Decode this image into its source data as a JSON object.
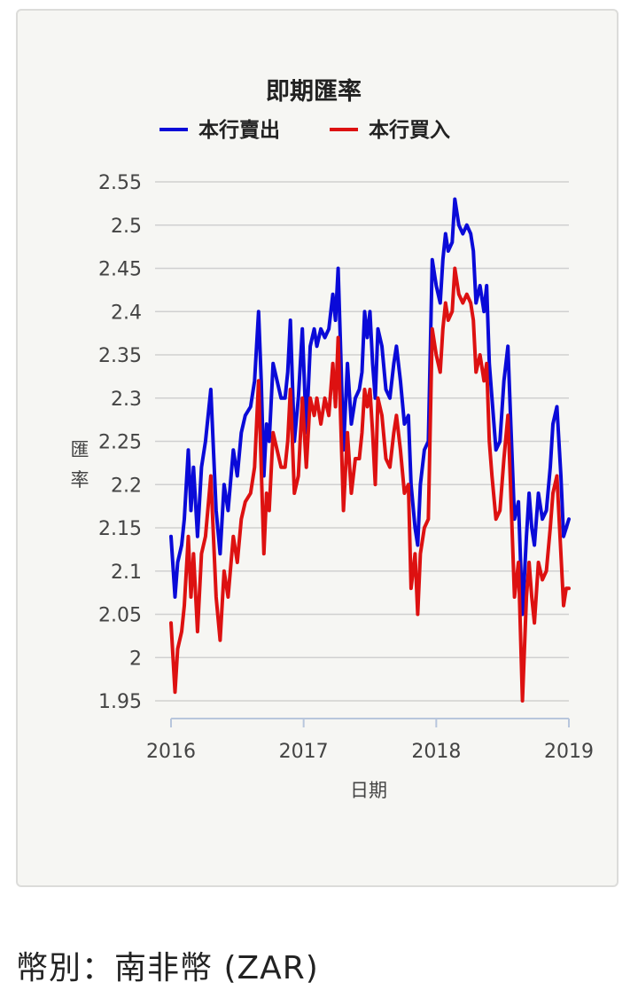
{
  "chart_data": {
    "type": "line",
    "title": "即期匯率",
    "xlabel": "日期",
    "ylabel": "匯率",
    "ylim": [
      1.95,
      2.55
    ],
    "y_ticks": [
      "2.55",
      "2.5",
      "2.45",
      "2.4",
      "2.35",
      "2.3",
      "2.25",
      "2.2",
      "2.15",
      "2.1",
      "2.05",
      "2",
      "1.95"
    ],
    "x_ticks": [
      "2016",
      "2017",
      "2018",
      "2019"
    ],
    "x_range": [
      2016,
      2019
    ],
    "legend": "top",
    "grid": true,
    "series": [
      {
        "name": "本行賣出",
        "color": "#0a0ad8",
        "points": [
          [
            2016.0,
            2.14
          ],
          [
            2016.03,
            2.07
          ],
          [
            2016.05,
            2.11
          ],
          [
            2016.08,
            2.13
          ],
          [
            2016.1,
            2.16
          ],
          [
            2016.13,
            2.24
          ],
          [
            2016.15,
            2.17
          ],
          [
            2016.17,
            2.22
          ],
          [
            2016.2,
            2.14
          ],
          [
            2016.23,
            2.22
          ],
          [
            2016.26,
            2.25
          ],
          [
            2016.3,
            2.31
          ],
          [
            2016.34,
            2.17
          ],
          [
            2016.37,
            2.12
          ],
          [
            2016.4,
            2.2
          ],
          [
            2016.43,
            2.17
          ],
          [
            2016.47,
            2.24
          ],
          [
            2016.5,
            2.21
          ],
          [
            2016.53,
            2.26
          ],
          [
            2016.56,
            2.28
          ],
          [
            2016.6,
            2.29
          ],
          [
            2016.63,
            2.32
          ],
          [
            2016.66,
            2.4
          ],
          [
            2016.68,
            2.32
          ],
          [
            2016.7,
            2.21
          ],
          [
            2016.72,
            2.27
          ],
          [
            2016.74,
            2.25
          ],
          [
            2016.77,
            2.34
          ],
          [
            2016.8,
            2.32
          ],
          [
            2016.83,
            2.3
          ],
          [
            2016.86,
            2.3
          ],
          [
            2016.88,
            2.33
          ],
          [
            2016.9,
            2.39
          ],
          [
            2016.93,
            2.25
          ],
          [
            2016.96,
            2.3
          ],
          [
            2016.99,
            2.38
          ],
          [
            2017.02,
            2.26
          ],
          [
            2017.05,
            2.36
          ],
          [
            2017.08,
            2.38
          ],
          [
            2017.1,
            2.36
          ],
          [
            2017.13,
            2.38
          ],
          [
            2017.16,
            2.37
          ],
          [
            2017.19,
            2.38
          ],
          [
            2017.22,
            2.42
          ],
          [
            2017.24,
            2.39
          ],
          [
            2017.26,
            2.45
          ],
          [
            2017.28,
            2.35
          ],
          [
            2017.3,
            2.24
          ],
          [
            2017.33,
            2.34
          ],
          [
            2017.36,
            2.27
          ],
          [
            2017.39,
            2.3
          ],
          [
            2017.42,
            2.31
          ],
          [
            2017.44,
            2.33
          ],
          [
            2017.46,
            2.4
          ],
          [
            2017.48,
            2.37
          ],
          [
            2017.5,
            2.4
          ],
          [
            2017.52,
            2.34
          ],
          [
            2017.54,
            2.3
          ],
          [
            2017.56,
            2.38
          ],
          [
            2017.59,
            2.36
          ],
          [
            2017.62,
            2.31
          ],
          [
            2017.65,
            2.3
          ],
          [
            2017.68,
            2.34
          ],
          [
            2017.7,
            2.36
          ],
          [
            2017.73,
            2.32
          ],
          [
            2017.76,
            2.27
          ],
          [
            2017.79,
            2.28
          ],
          [
            2017.81,
            2.2
          ],
          [
            2017.84,
            2.15
          ],
          [
            2017.86,
            2.13
          ],
          [
            2017.88,
            2.2
          ],
          [
            2017.91,
            2.24
          ],
          [
            2017.94,
            2.25
          ],
          [
            2017.97,
            2.46
          ],
          [
            2018.0,
            2.43
          ],
          [
            2018.03,
            2.41
          ],
          [
            2018.05,
            2.46
          ],
          [
            2018.07,
            2.49
          ],
          [
            2018.09,
            2.47
          ],
          [
            2018.12,
            2.48
          ],
          [
            2018.14,
            2.53
          ],
          [
            2018.17,
            2.5
          ],
          [
            2018.2,
            2.49
          ],
          [
            2018.23,
            2.5
          ],
          [
            2018.26,
            2.49
          ],
          [
            2018.28,
            2.47
          ],
          [
            2018.3,
            2.41
          ],
          [
            2018.33,
            2.43
          ],
          [
            2018.36,
            2.4
          ],
          [
            2018.38,
            2.43
          ],
          [
            2018.4,
            2.34
          ],
          [
            2018.42,
            2.3
          ],
          [
            2018.45,
            2.24
          ],
          [
            2018.48,
            2.25
          ],
          [
            2018.51,
            2.32
          ],
          [
            2018.54,
            2.36
          ],
          [
            2018.56,
            2.28
          ],
          [
            2018.59,
            2.16
          ],
          [
            2018.62,
            2.18
          ],
          [
            2018.65,
            2.05
          ],
          [
            2018.68,
            2.14
          ],
          [
            2018.7,
            2.19
          ],
          [
            2018.72,
            2.15
          ],
          [
            2018.74,
            2.13
          ],
          [
            2018.77,
            2.19
          ],
          [
            2018.8,
            2.16
          ],
          [
            2018.83,
            2.17
          ],
          [
            2018.86,
            2.22
          ],
          [
            2018.88,
            2.27
          ],
          [
            2018.91,
            2.29
          ],
          [
            2018.94,
            2.21
          ],
          [
            2018.96,
            2.14
          ],
          [
            2018.98,
            2.15
          ],
          [
            2019.0,
            2.16
          ]
        ]
      },
      {
        "name": "本行買入",
        "color": "#dd1111",
        "points": [
          [
            2016.0,
            2.04
          ],
          [
            2016.03,
            1.96
          ],
          [
            2016.05,
            2.01
          ],
          [
            2016.08,
            2.03
          ],
          [
            2016.1,
            2.06
          ],
          [
            2016.13,
            2.14
          ],
          [
            2016.15,
            2.07
          ],
          [
            2016.17,
            2.12
          ],
          [
            2016.2,
            2.03
          ],
          [
            2016.23,
            2.12
          ],
          [
            2016.26,
            2.14
          ],
          [
            2016.3,
            2.21
          ],
          [
            2016.34,
            2.07
          ],
          [
            2016.37,
            2.02
          ],
          [
            2016.4,
            2.1
          ],
          [
            2016.43,
            2.07
          ],
          [
            2016.47,
            2.14
          ],
          [
            2016.5,
            2.11
          ],
          [
            2016.53,
            2.16
          ],
          [
            2016.56,
            2.18
          ],
          [
            2016.6,
            2.19
          ],
          [
            2016.63,
            2.22
          ],
          [
            2016.66,
            2.32
          ],
          [
            2016.68,
            2.22
          ],
          [
            2016.7,
            2.12
          ],
          [
            2016.72,
            2.19
          ],
          [
            2016.74,
            2.17
          ],
          [
            2016.77,
            2.26
          ],
          [
            2016.8,
            2.24
          ],
          [
            2016.83,
            2.22
          ],
          [
            2016.86,
            2.22
          ],
          [
            2016.88,
            2.25
          ],
          [
            2016.9,
            2.31
          ],
          [
            2016.93,
            2.19
          ],
          [
            2016.96,
            2.21
          ],
          [
            2016.99,
            2.3
          ],
          [
            2017.02,
            2.22
          ],
          [
            2017.05,
            2.3
          ],
          [
            2017.08,
            2.28
          ],
          [
            2017.1,
            2.3
          ],
          [
            2017.13,
            2.27
          ],
          [
            2017.16,
            2.3
          ],
          [
            2017.19,
            2.28
          ],
          [
            2017.22,
            2.34
          ],
          [
            2017.24,
            2.29
          ],
          [
            2017.26,
            2.37
          ],
          [
            2017.28,
            2.27
          ],
          [
            2017.3,
            2.17
          ],
          [
            2017.33,
            2.26
          ],
          [
            2017.36,
            2.19
          ],
          [
            2017.39,
            2.23
          ],
          [
            2017.42,
            2.23
          ],
          [
            2017.44,
            2.26
          ],
          [
            2017.46,
            2.31
          ],
          [
            2017.48,
            2.29
          ],
          [
            2017.5,
            2.31
          ],
          [
            2017.52,
            2.26
          ],
          [
            2017.54,
            2.2
          ],
          [
            2017.56,
            2.3
          ],
          [
            2017.59,
            2.28
          ],
          [
            2017.62,
            2.23
          ],
          [
            2017.65,
            2.22
          ],
          [
            2017.68,
            2.26
          ],
          [
            2017.7,
            2.28
          ],
          [
            2017.73,
            2.24
          ],
          [
            2017.76,
            2.19
          ],
          [
            2017.79,
            2.2
          ],
          [
            2017.81,
            2.08
          ],
          [
            2017.84,
            2.12
          ],
          [
            2017.86,
            2.05
          ],
          [
            2017.88,
            2.12
          ],
          [
            2017.91,
            2.15
          ],
          [
            2017.94,
            2.16
          ],
          [
            2017.97,
            2.38
          ],
          [
            2018.0,
            2.35
          ],
          [
            2018.03,
            2.33
          ],
          [
            2018.05,
            2.38
          ],
          [
            2018.07,
            2.41
          ],
          [
            2018.09,
            2.39
          ],
          [
            2018.12,
            2.4
          ],
          [
            2018.14,
            2.45
          ],
          [
            2018.17,
            2.42
          ],
          [
            2018.2,
            2.41
          ],
          [
            2018.23,
            2.42
          ],
          [
            2018.26,
            2.41
          ],
          [
            2018.28,
            2.39
          ],
          [
            2018.3,
            2.33
          ],
          [
            2018.33,
            2.35
          ],
          [
            2018.36,
            2.32
          ],
          [
            2018.38,
            2.34
          ],
          [
            2018.4,
            2.25
          ],
          [
            2018.42,
            2.21
          ],
          [
            2018.45,
            2.16
          ],
          [
            2018.48,
            2.17
          ],
          [
            2018.51,
            2.23
          ],
          [
            2018.54,
            2.28
          ],
          [
            2018.56,
            2.2
          ],
          [
            2018.59,
            2.07
          ],
          [
            2018.62,
            2.11
          ],
          [
            2018.65,
            1.95
          ],
          [
            2018.68,
            2.07
          ],
          [
            2018.7,
            2.11
          ],
          [
            2018.72,
            2.07
          ],
          [
            2018.74,
            2.04
          ],
          [
            2018.77,
            2.11
          ],
          [
            2018.8,
            2.09
          ],
          [
            2018.83,
            2.1
          ],
          [
            2018.86,
            2.15
          ],
          [
            2018.88,
            2.19
          ],
          [
            2018.91,
            2.21
          ],
          [
            2018.94,
            2.12
          ],
          [
            2018.96,
            2.06
          ],
          [
            2018.98,
            2.08
          ],
          [
            2019.0,
            2.08
          ]
        ]
      }
    ]
  },
  "footer": {
    "text": "幣別：南非幣 (ZAR)"
  }
}
